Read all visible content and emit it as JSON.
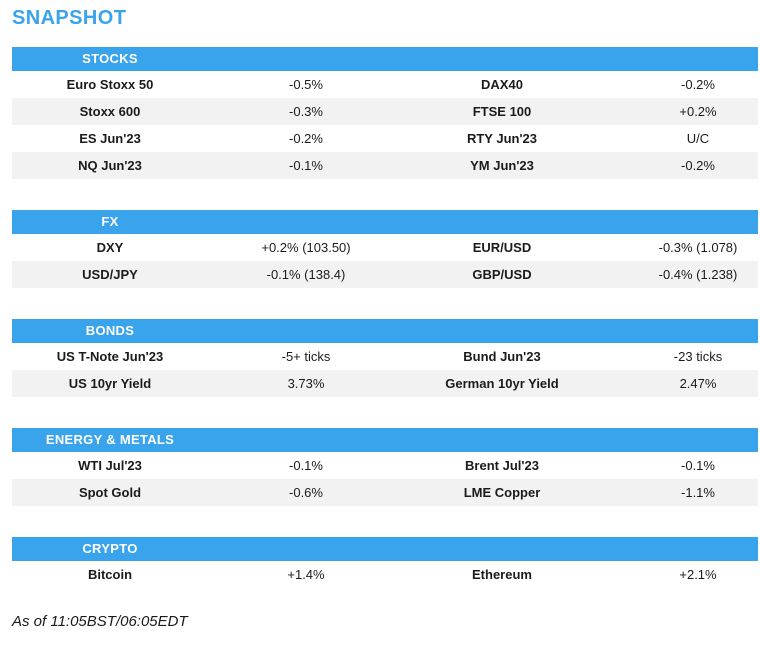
{
  "page_title": "SNAPSHOT",
  "colors": {
    "accent": "#39A3EC",
    "row_alt": "#F2F2F2",
    "header_text": "#FFFFFF",
    "text": "#1B1B1B"
  },
  "sections": [
    {
      "title": "STOCKS",
      "rows": [
        {
          "label1": "Euro Stoxx 50",
          "value1": "-0.5%",
          "label2": "DAX40",
          "value2": "-0.2%"
        },
        {
          "label1": "Stoxx 600",
          "value1": "-0.3%",
          "label2": "FTSE 100",
          "value2": "+0.2%"
        },
        {
          "label1": "ES Jun'23",
          "value1": "-0.2%",
          "label2": "RTY Jun'23",
          "value2": "U/C"
        },
        {
          "label1": "NQ Jun'23",
          "value1": "-0.1%",
          "label2": "YM Jun'23",
          "value2": "-0.2%"
        }
      ]
    },
    {
      "title": "FX",
      "rows": [
        {
          "label1": "DXY",
          "value1": "+0.2% (103.50)",
          "label2": "EUR/USD",
          "value2": "-0.3% (1.078)"
        },
        {
          "label1": "USD/JPY",
          "value1": "-0.1% (138.4)",
          "label2": "GBP/USD",
          "value2": "-0.4% (1.238)"
        }
      ]
    },
    {
      "title": "BONDS",
      "rows": [
        {
          "label1": "US T-Note Jun'23",
          "value1": "-5+ ticks",
          "label2": "Bund Jun'23",
          "value2": "-23 ticks"
        },
        {
          "label1": "US 10yr Yield",
          "value1": "3.73%",
          "label2": "German 10yr Yield",
          "value2": "2.47%"
        }
      ]
    },
    {
      "title": "ENERGY & METALS",
      "rows": [
        {
          "label1": "WTI Jul'23",
          "value1": "-0.1%",
          "label2": "Brent Jul'23",
          "value2": "-0.1%"
        },
        {
          "label1": "Spot Gold",
          "value1": "-0.6%",
          "label2": "LME Copper",
          "value2": "-1.1%"
        }
      ]
    },
    {
      "title": "CRYPTO",
      "rows": [
        {
          "label1": "Bitcoin",
          "value1": "+1.4%",
          "label2": "Ethereum",
          "value2": "+2.1%"
        }
      ]
    }
  ],
  "footer": {
    "timestamp": "As of 11:05BST/06:05EDT"
  }
}
